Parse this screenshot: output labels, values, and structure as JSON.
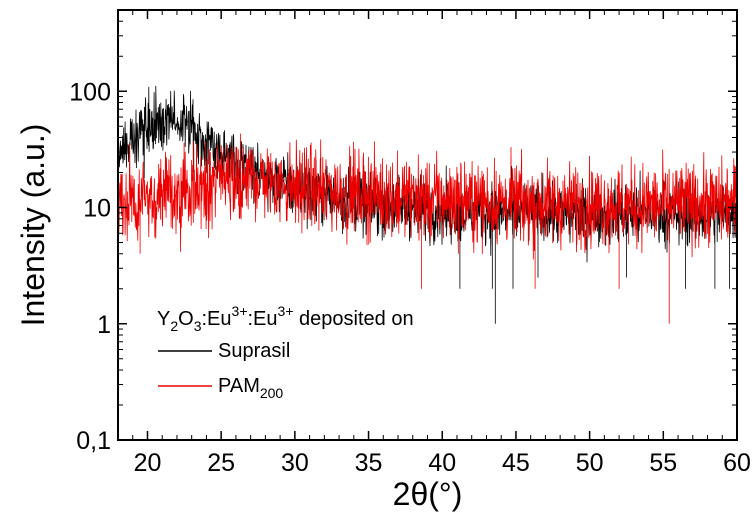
{
  "chart_data": {
    "type": "line",
    "title": "",
    "xlabel": "2θ(°)",
    "ylabel": "Intensity (a.u.)",
    "x_scale": "linear",
    "y_scale": "log",
    "xlim": [
      18,
      60
    ],
    "ylim": [
      0.1,
      500
    ],
    "x_ticks": [
      20,
      25,
      30,
      35,
      40,
      45,
      50,
      55,
      60
    ],
    "x_tick_labels": [
      "20",
      "25",
      "30",
      "35",
      "40",
      "45",
      "50",
      "55",
      "60"
    ],
    "y_ticks": [
      0.1,
      1,
      10,
      100
    ],
    "y_tick_labels": [
      "0,1",
      "1",
      "10",
      "100"
    ],
    "grid": false,
    "legend": {
      "placement": "bottom-left",
      "title_parts": [
        {
          "text": "Y",
          "shift": "base"
        },
        {
          "text": "2",
          "shift": "sub"
        },
        {
          "text": "O",
          "shift": "base"
        },
        {
          "text": "3",
          "shift": "sub"
        },
        {
          "text": ":Eu",
          "shift": "base"
        },
        {
          "text": "3+",
          "shift": "super"
        },
        {
          "text": ":Eu",
          "shift": "base"
        },
        {
          "text": "3+",
          "shift": "super"
        },
        {
          "text": " deposited on",
          "shift": "base"
        }
      ],
      "entries": [
        {
          "series": 0,
          "parts": [
            {
              "text": "Suprasil",
              "shift": "base"
            }
          ]
        },
        {
          "series": 1,
          "parts": [
            {
              "text": "PAM",
              "shift": "base"
            },
            {
              "text": "200",
              "shift": "sub"
            }
          ]
        }
      ]
    },
    "series": [
      {
        "name": "Suprasil",
        "color": "#000000",
        "x": [
          18,
          19,
          20,
          21,
          22,
          23,
          24,
          25,
          26,
          27,
          28,
          30,
          32,
          35,
          38,
          40,
          45,
          50,
          55,
          60
        ],
        "y": [
          30,
          38,
          48,
          55,
          55,
          48,
          38,
          30,
          24,
          20,
          18,
          15,
          13,
          11,
          10,
          9.5,
          9,
          8.8,
          8.8,
          8.8
        ],
        "noise_fraction": 0.3,
        "min_spikes": [
          [
            43.6,
            1.0
          ],
          [
            43.4,
            2.0
          ],
          [
            44.8,
            2.0
          ],
          [
            41.2,
            2.0
          ],
          [
            56.5,
            2.0
          ],
          [
            58.5,
            2.0
          ],
          [
            59.5,
            2.0
          ],
          [
            46.5,
            2.5
          ],
          [
            52.5,
            2.5
          ]
        ]
      },
      {
        "name": "PAM200",
        "color": "#ee0000",
        "x": [
          18,
          20,
          22,
          24,
          25,
          26,
          28,
          30,
          32,
          35,
          38,
          40,
          45,
          50,
          55,
          60
        ],
        "y": [
          11,
          12,
          13,
          15,
          17,
          18,
          17,
          15,
          14,
          13,
          12,
          11.5,
          11,
          10.5,
          10.5,
          11
        ],
        "noise_fraction": 0.4,
        "min_spikes": [
          [
            55.4,
            1.0
          ],
          [
            38.6,
            2.0
          ],
          [
            46.3,
            2.0
          ],
          [
            52.0,
            2.0
          ],
          [
            19.5,
            4.0
          ]
        ]
      }
    ]
  }
}
